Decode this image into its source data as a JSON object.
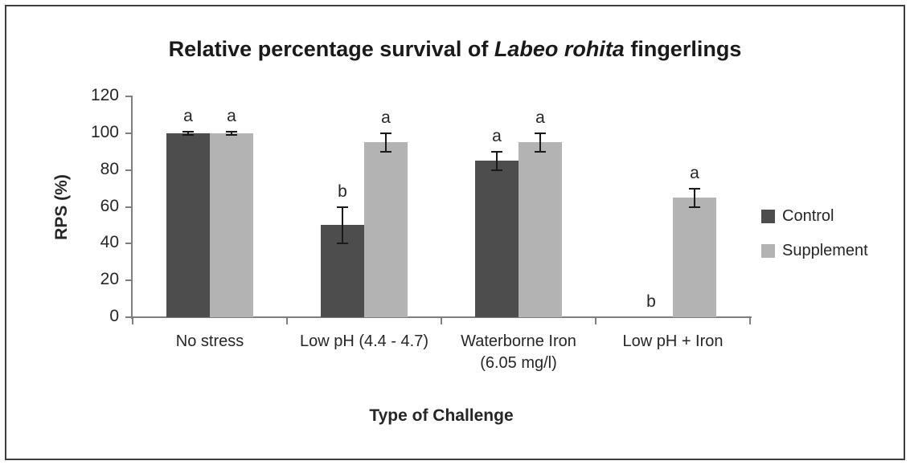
{
  "figure": {
    "kind": "grouped-bar-chart-with-error-bars"
  },
  "chart_data": {
    "type": "bar",
    "title": "Relative percentage survival of Labeo rohita fingerlings",
    "title_parts": {
      "prefix": "Relative percentage survival of ",
      "italic": "Labeo rohita",
      "suffix": " fingerlings"
    },
    "xlabel": "Type of Challenge",
    "ylabel": "RPS (%)",
    "ylim": [
      0,
      120
    ],
    "yticks": [
      0,
      20,
      40,
      60,
      80,
      100,
      120
    ],
    "grid": false,
    "legend_position": "right",
    "categories": [
      "No stress",
      "Low pH (4.4 - 4.7)",
      "Waterborne Iron (6.05 mg/l)",
      "Low pH + Iron"
    ],
    "category_label_lines": [
      [
        "No stress"
      ],
      [
        "Low pH (4.4 - 4.7)"
      ],
      [
        "Waterborne Iron",
        "(6.05 mg/l)"
      ],
      [
        "Low pH + Iron"
      ]
    ],
    "series": [
      {
        "name": "Control",
        "color": "#4d4d4d",
        "values": [
          100,
          50,
          85,
          0
        ],
        "error_bars": [
          1,
          10,
          5,
          0
        ],
        "significance_letters": [
          "a",
          "b",
          "a",
          "b"
        ]
      },
      {
        "name": "Supplement",
        "color": "#b3b3b3",
        "values": [
          100,
          95,
          95,
          65
        ],
        "error_bars": [
          1,
          5,
          5,
          5
        ],
        "significance_letters": [
          "a",
          "a",
          "a",
          "a"
        ]
      }
    ],
    "colors": {
      "axis": "#7f7f7f",
      "error_bar": "#1a1a1a",
      "text": "#262626",
      "figure_border": "#3d3d3d"
    }
  }
}
